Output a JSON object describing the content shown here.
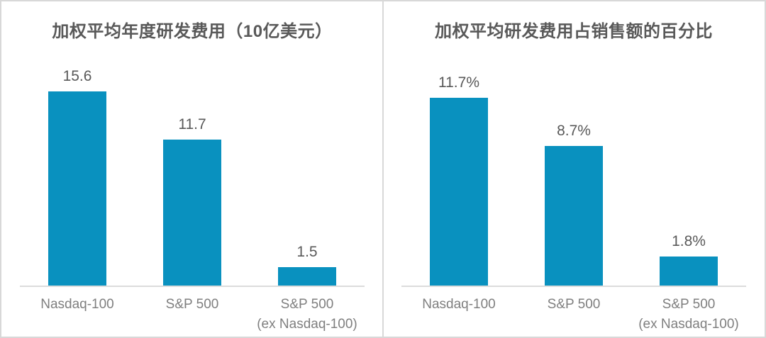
{
  "page": {
    "background_color": "#ffffff",
    "frame_color": "#d8d8d8",
    "title_color": "#595959",
    "value_label_color": "#595959",
    "category_label_color": "#7f7f7f"
  },
  "chart_data": [
    {
      "type": "bar",
      "title": "加权平均年度研发费用（10亿美元）",
      "categories": [
        "Nasdaq-100",
        "S&P 500",
        "S&P 500\n(ex Nasdaq-100)"
      ],
      "values": [
        15.6,
        11.7,
        1.5
      ],
      "data_labels": [
        "15.6",
        "11.7",
        "1.5"
      ],
      "xlabel": "",
      "ylabel": "",
      "ylim": [
        0,
        16
      ],
      "grid": false,
      "legend": false,
      "bar_color": "#0991bf"
    },
    {
      "type": "bar",
      "title": "加权平均研发费用占销售额的百分比",
      "categories": [
        "Nasdaq-100",
        "S&P 500",
        "S&P 500\n(ex Nasdaq-100)"
      ],
      "values": [
        11.7,
        8.7,
        1.8
      ],
      "data_labels": [
        "11.7%",
        "8.7%",
        "1.8%"
      ],
      "xlabel": "",
      "ylabel": "",
      "ylim": [
        0,
        12.5
      ],
      "grid": false,
      "legend": false,
      "bar_color": "#0991bf"
    }
  ]
}
